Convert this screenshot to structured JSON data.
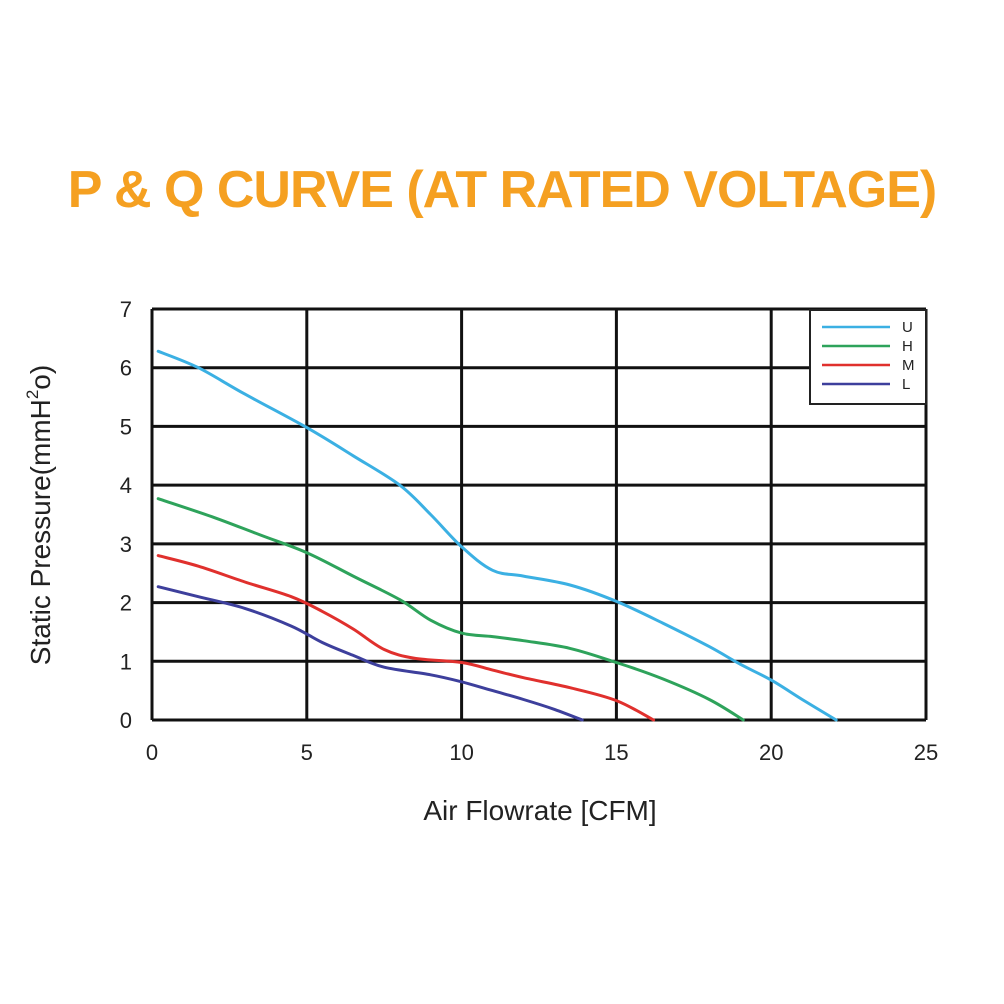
{
  "chart_data": {
    "type": "line",
    "title": "P & Q CURVE (AT RATED VOLTAGE)",
    "xlabel": "Air  Flowrate   [CFM]",
    "ylabel_main": "Static Pressure(mmH",
    "ylabel_sup": "2",
    "ylabel_end": "o)",
    "xlim": [
      0,
      25
    ],
    "ylim": [
      0,
      7
    ],
    "xticks": [
      0,
      5,
      10,
      15,
      20,
      25
    ],
    "yticks": [
      0,
      1,
      2,
      3,
      4,
      5,
      6,
      7
    ],
    "grid": true,
    "legend_position": "top-right",
    "series": [
      {
        "name": "U",
        "color": "#3bb0e3",
        "points": [
          [
            0.2,
            6.28
          ],
          [
            1.5,
            6.0
          ],
          [
            3,
            5.55
          ],
          [
            5,
            4.98
          ],
          [
            6.5,
            4.5
          ],
          [
            8,
            4.0
          ],
          [
            9,
            3.5
          ],
          [
            10,
            2.95
          ],
          [
            11,
            2.55
          ],
          [
            12,
            2.45
          ],
          [
            13.5,
            2.3
          ],
          [
            15,
            2.02
          ],
          [
            16.5,
            1.65
          ],
          [
            18,
            1.25
          ],
          [
            19,
            0.95
          ],
          [
            20,
            0.68
          ],
          [
            21,
            0.35
          ],
          [
            22.1,
            0.0
          ]
        ]
      },
      {
        "name": "H",
        "color": "#2ea35b",
        "points": [
          [
            0.2,
            3.77
          ],
          [
            2,
            3.45
          ],
          [
            3.5,
            3.15
          ],
          [
            5,
            2.85
          ],
          [
            6.5,
            2.45
          ],
          [
            8,
            2.05
          ],
          [
            9,
            1.7
          ],
          [
            10,
            1.48
          ],
          [
            11,
            1.42
          ],
          [
            12,
            1.35
          ],
          [
            13.5,
            1.22
          ],
          [
            15,
            0.98
          ],
          [
            16.5,
            0.7
          ],
          [
            18,
            0.35
          ],
          [
            19.1,
            0.0
          ]
        ]
      },
      {
        "name": "M",
        "color": "#e0302d",
        "points": [
          [
            0.2,
            2.8
          ],
          [
            1.5,
            2.62
          ],
          [
            3,
            2.35
          ],
          [
            4.5,
            2.1
          ],
          [
            5.5,
            1.85
          ],
          [
            6.5,
            1.55
          ],
          [
            7.5,
            1.2
          ],
          [
            8.5,
            1.05
          ],
          [
            10,
            0.98
          ],
          [
            11,
            0.85
          ],
          [
            12,
            0.72
          ],
          [
            13.5,
            0.55
          ],
          [
            15,
            0.33
          ],
          [
            16.2,
            0.0
          ]
        ]
      },
      {
        "name": "L",
        "color": "#3d3f9c",
        "points": [
          [
            0.2,
            2.27
          ],
          [
            1.5,
            2.1
          ],
          [
            3,
            1.9
          ],
          [
            4.5,
            1.6
          ],
          [
            5.5,
            1.32
          ],
          [
            6.5,
            1.1
          ],
          [
            7.5,
            0.9
          ],
          [
            9,
            0.77
          ],
          [
            10,
            0.65
          ],
          [
            11,
            0.5
          ],
          [
            12,
            0.35
          ],
          [
            13,
            0.18
          ],
          [
            13.9,
            0.0
          ]
        ]
      }
    ]
  }
}
